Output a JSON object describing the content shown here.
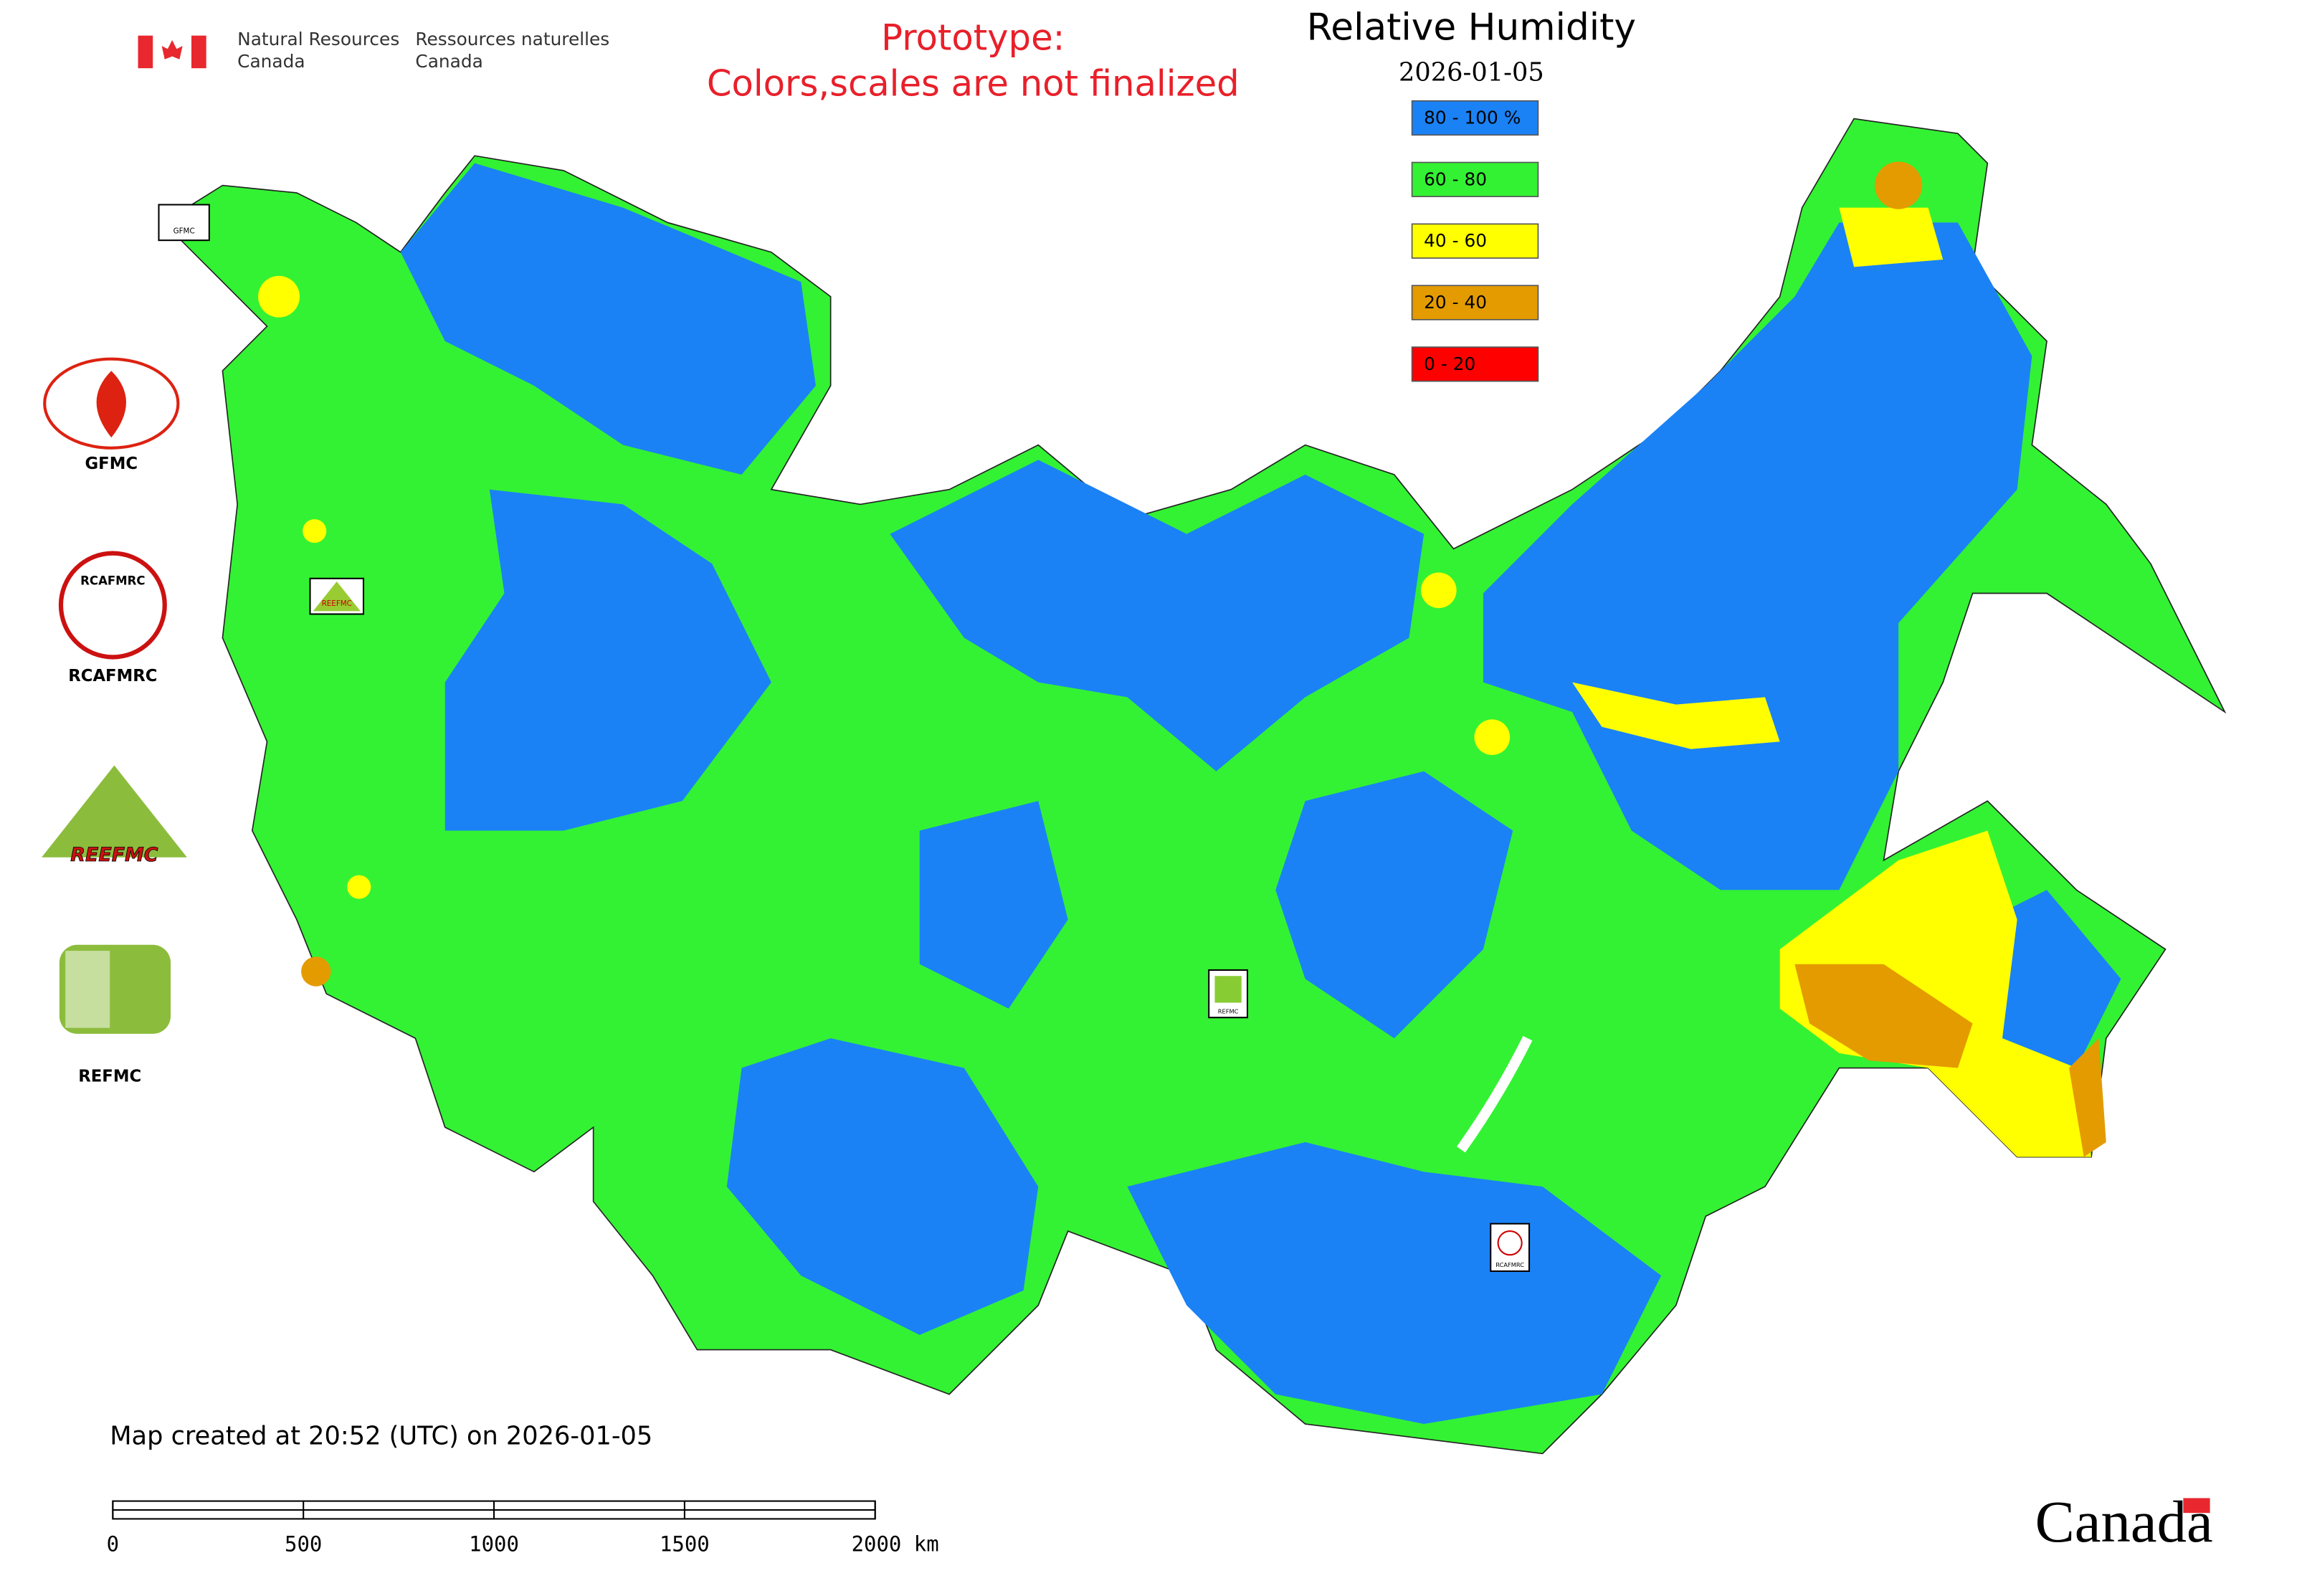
{
  "header": {
    "agency_en": [
      "Natural Resources",
      "Canada"
    ],
    "agency_fr": [
      "Ressources naturelles",
      "Canada"
    ]
  },
  "notice": [
    "Prototype:",
    "Colors,scales are not finalized"
  ],
  "map": {
    "title": "Relative Humidity",
    "date": "2026-01-05",
    "legend": [
      {
        "label": "80 - 100 %",
        "color": "#1a82f5"
      },
      {
        "label": "60 - 80",
        "color": "#33f233"
      },
      {
        "label": "40 - 60",
        "color": "#ffff00"
      },
      {
        "label": "20 - 40",
        "color": "#e49b00"
      },
      {
        "label": "0 - 20",
        "color": "#ff0000"
      }
    ],
    "credit": "Map created at 20:52 (UTC) on 2026-01-05",
    "scale_bar": {
      "range": [
        0,
        2000
      ],
      "ticks": [
        0,
        500,
        1000,
        1500,
        {
          "value": 2000,
          "label": "2000 km"
        }
      ]
    },
    "markers": [
      "GFMC",
      "REEFMC",
      "REFMC",
      "RCAFMRC"
    ]
  },
  "partners": {
    "labels": [
      "GFMC",
      "RCAFMRC",
      "REFMC"
    ],
    "logo_text": [
      "RCAFMRC",
      "REEFMC"
    ]
  },
  "wordmark": "Canada"
}
